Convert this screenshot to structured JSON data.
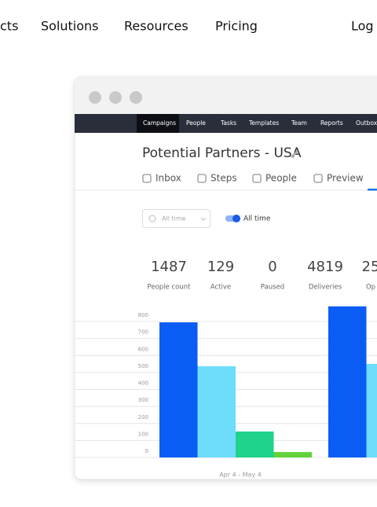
{
  "nav": {
    "items": [
      "cts",
      "Solutions",
      "Resources",
      "Pricing",
      "Log"
    ]
  },
  "app": {
    "menu": [
      "Campaigns",
      "People",
      "Tasks",
      "Templates",
      "Team",
      "Reports",
      "Outbox"
    ],
    "title": "Potential Partners - USA",
    "tabs": [
      "Inbox",
      "Steps",
      "People",
      "Preview"
    ],
    "filter": {
      "select": "All time",
      "toggle": "All time"
    },
    "stats": [
      {
        "value": 1487,
        "label": "People count"
      },
      {
        "value": 129,
        "label": "Active"
      },
      {
        "value": 0,
        "label": "Paused"
      },
      {
        "value": 4819,
        "label": "Deliveries"
      },
      {
        "value": 25,
        "label": "Op"
      }
    ],
    "chart": {
      "type": "bar",
      "ylim": [
        0,
        800
      ],
      "yticks": [
        0,
        100,
        200,
        300,
        400,
        500,
        600,
        700,
        800
      ],
      "colors": [
        "#0a5cf5",
        "#6edcfb",
        "#1fd38a",
        "#62d23b"
      ],
      "groups": [
        [
          795,
          537,
          153,
          32
        ],
        [
          889,
          551
        ]
      ],
      "xlabel": "Apr 4 - May 4"
    }
  }
}
